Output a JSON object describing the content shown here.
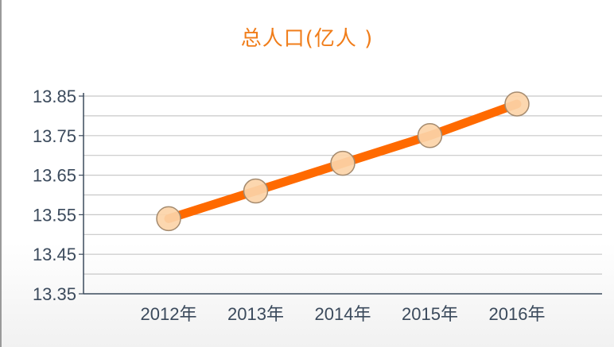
{
  "chart_data": {
    "type": "line",
    "title": "总人口(亿人 )",
    "categories": [
      "2012年",
      "2013年",
      "2014年",
      "2015年",
      "2016年"
    ],
    "series": [
      {
        "values": [
          13.54,
          13.61,
          13.68,
          13.75,
          13.83
        ]
      }
    ],
    "ylim": [
      13.35,
      13.85
    ],
    "yticks": [
      "13.35",
      "13.45",
      "13.55",
      "13.65",
      "13.75",
      "13.85"
    ],
    "xlabel": "",
    "ylabel": "",
    "grid": true,
    "colors": {
      "line": "#ff6a00",
      "marker_fill": "#fcd4a8",
      "marker_stroke": "#a48a6e",
      "title": "#f07d1a",
      "axis": "#3b4a5c",
      "grid": "#c8c8c8"
    }
  }
}
